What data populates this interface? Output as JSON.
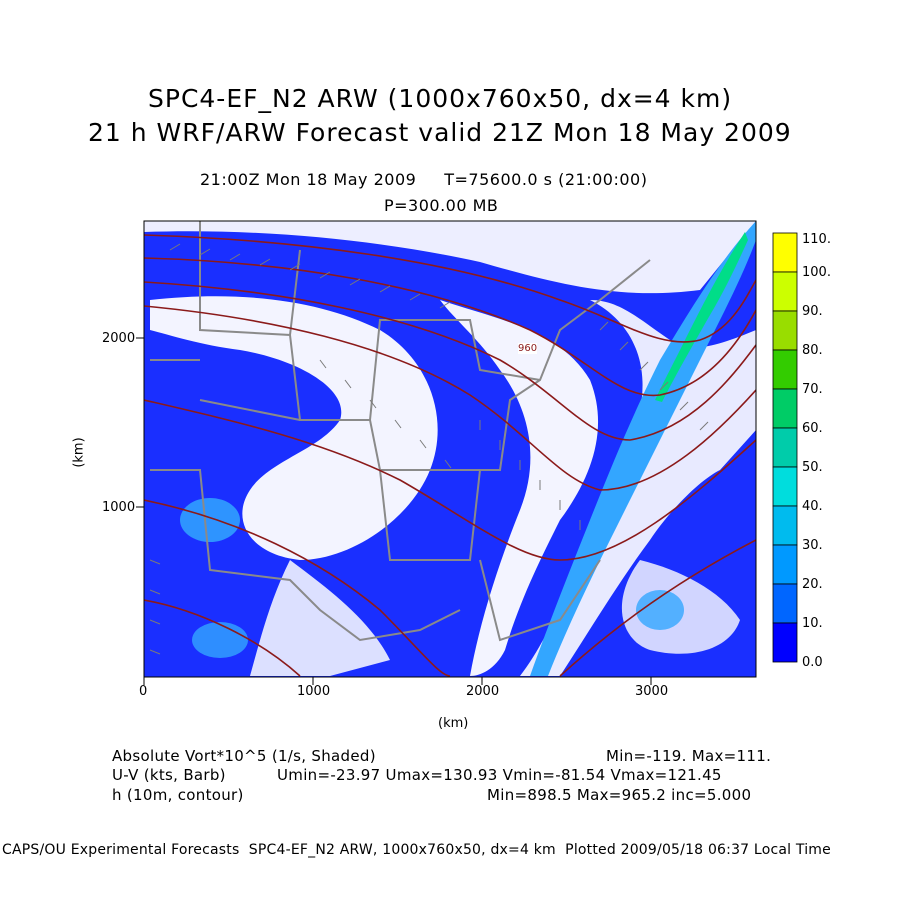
{
  "header": {
    "title_line1": "SPC4-EF_N2 ARW (1000x760x50, dx=4 km)",
    "title_line2": "21 h WRF/ARW Forecast valid 21Z Mon 18 May 2009",
    "time_line": "21:00Z Mon 18 May 2009     T=75600.0 s (21:00:00)",
    "level_line": "P=300.00 MB"
  },
  "axes": {
    "x_label": "(km)",
    "y_label": "(km)",
    "x_ticks": [
      "0",
      "1000",
      "2000",
      "3000"
    ],
    "y_ticks": [
      "1000",
      "2000"
    ]
  },
  "contour_label": "960",
  "colorbar": {
    "labels": [
      "110.",
      "100.",
      "90.",
      "80.",
      "70.",
      "60.",
      "50.",
      "40.",
      "30.",
      "20.",
      "10.",
      "0.0"
    ],
    "colors": [
      "#ffff00",
      "#ccff00",
      "#99dd00",
      "#33cc00",
      "#00cc66",
      "#00ccaa",
      "#00dddd",
      "#00bbee",
      "#0099ff",
      "#0066ff",
      "#0033ff",
      "#0000ff"
    ]
  },
  "legend": {
    "line1_left": "Absolute Vort*10^5 (1/s, Shaded)",
    "line1_right": "Min=-119. Max=111.",
    "line2_left": "U-V (kts, Barb)",
    "line2_right": "Umin=-23.97 Umax=130.93 Vmin=-81.54 Vmax=121.45",
    "line3_left": "h (10m, contour)",
    "line3_right": "Min=898.5 Max=965.2 inc=5.000"
  },
  "footer": "CAPS/OU Experimental Forecasts  SPC4-EF_N2 ARW, 1000x760x50, dx=4 km  Plotted 2009/05/18 06:37 Local Time"
}
